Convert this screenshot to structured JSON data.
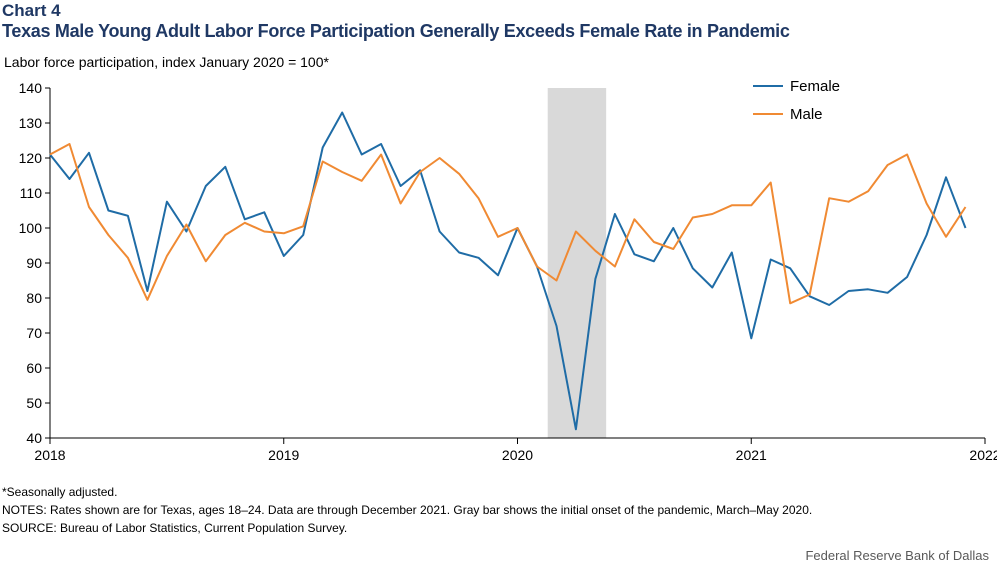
{
  "header": {
    "chart_number": "Chart 4",
    "title": "Texas Male Young Adult Labor Force Participation Generally Exceeds Female Rate in Pandemic"
  },
  "chart_data": {
    "type": "line",
    "ylabel": "Labor force participation, index January  2020 = 100*",
    "xlabel": "",
    "ylim": [
      40,
      140
    ],
    "yticks": [
      "40",
      "50",
      "60",
      "70",
      "80",
      "90",
      "100",
      "110",
      "120",
      "130",
      "140"
    ],
    "x_range": [
      "2018-01",
      "2022-01"
    ],
    "xticks": [
      "2018",
      "2019",
      "2020",
      "2021",
      "2022"
    ],
    "grid": false,
    "legend_position": "top-right",
    "shaded_region": {
      "start": "2020-03",
      "end": "2020-05",
      "color": "#d9d9d9"
    },
    "x": [
      "2018-01",
      "2018-02",
      "2018-03",
      "2018-04",
      "2018-05",
      "2018-06",
      "2018-07",
      "2018-08",
      "2018-09",
      "2018-10",
      "2018-11",
      "2018-12",
      "2019-01",
      "2019-02",
      "2019-03",
      "2019-04",
      "2019-05",
      "2019-06",
      "2019-07",
      "2019-08",
      "2019-09",
      "2019-10",
      "2019-11",
      "2019-12",
      "2020-01",
      "2020-02",
      "2020-03",
      "2020-04",
      "2020-05",
      "2020-06",
      "2020-07",
      "2020-08",
      "2020-09",
      "2020-10",
      "2020-11",
      "2020-12",
      "2021-01",
      "2021-02",
      "2021-03",
      "2021-04",
      "2021-05",
      "2021-06",
      "2021-07",
      "2021-08",
      "2021-09",
      "2021-10",
      "2021-11",
      "2021-12"
    ],
    "series": [
      {
        "name": "Female",
        "color": "#1f6ca6",
        "values": [
          121,
          114,
          121.5,
          105,
          103.5,
          82,
          107.5,
          99,
          112,
          117.5,
          102.5,
          104.5,
          92,
          98,
          123,
          133,
          121,
          124,
          112,
          116.5,
          99,
          93,
          91.5,
          86.5,
          100,
          89,
          72,
          42.5,
          85.5,
          104,
          92.5,
          90.5,
          100,
          88.5,
          83,
          93,
          68.5,
          91,
          88.5,
          80.5,
          78,
          82,
          82.5,
          81.5,
          86,
          98,
          114.5,
          100
        ]
      },
      {
        "name": "Male",
        "color": "#f08a33",
        "values": [
          121,
          124,
          106,
          98,
          91.5,
          79.5,
          92,
          101,
          90.5,
          98,
          101.5,
          99,
          98.5,
          100.5,
          119,
          116,
          113.5,
          121,
          107,
          116,
          120,
          115.5,
          108.5,
          97.5,
          100,
          89,
          85,
          99,
          93.5,
          89,
          102.5,
          96,
          94,
          103,
          104,
          106.5,
          106.5,
          113,
          78.5,
          81,
          108.5,
          107.5,
          110.5,
          118,
          121,
          107,
          97.5,
          106
        ]
      }
    ]
  },
  "footnotes": {
    "seasonal": "*Seasonally adjusted.",
    "notes": "NOTES: Rates shown are for Texas, ages 18–24. Data are through December 2021. Gray bar shows the initial onset of the pandemic, March–May 2020.",
    "source": "SOURCE: Bureau of Labor Statistics, Current Population Survey."
  },
  "credit": "Federal Reserve Bank of Dallas"
}
